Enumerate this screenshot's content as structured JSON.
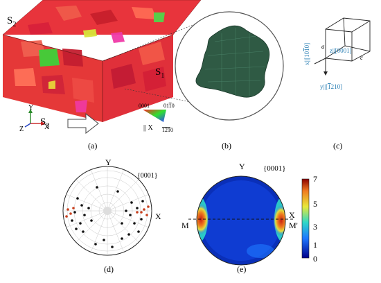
{
  "panel_a": {
    "label": "(a)",
    "surface_labels": [
      "S",
      "S",
      "S"
    ],
    "surface_subscripts": [
      "2",
      "1",
      "3"
    ],
    "axes": {
      "y": "Y",
      "z": "Z",
      "x": "X"
    },
    "legend": {
      "top_left": "0001",
      "top_right": "01",
      "top_right_bar": "1",
      "top_right_tail": "0",
      "bottom": "12",
      "bottom_bar": "1",
      "bottom_tail": "0",
      "direction": "|| X"
    }
  },
  "panel_b": {
    "label": "(b)"
  },
  "panel_c": {
    "label": "(c)",
    "vertices": {
      "a": "a",
      "c": "c"
    },
    "z_axis": "z||[0001]",
    "x_axis": "x||[10",
    "x_axis_bar": "1",
    "x_axis_tail": "0]",
    "y_axis": "y||[",
    "y_axis_bar": "1",
    "y_axis_tail": "210]"
  },
  "panel_d": {
    "label": "(d)",
    "plane": "{0001}",
    "y_axis": "Y",
    "x_axis": "X"
  },
  "panel_e": {
    "label": "(e)",
    "plane": "{0001}",
    "y_axis": "Y",
    "x_axis": "X",
    "left_marker": "M",
    "right_marker": "M'",
    "colorbar_ticks": [
      "7",
      "5",
      "3",
      "1",
      "0"
    ],
    "colors": {
      "low": "#0a1fa8",
      "mid": "#2fd8c8",
      "high": "#c81f10"
    }
  }
}
